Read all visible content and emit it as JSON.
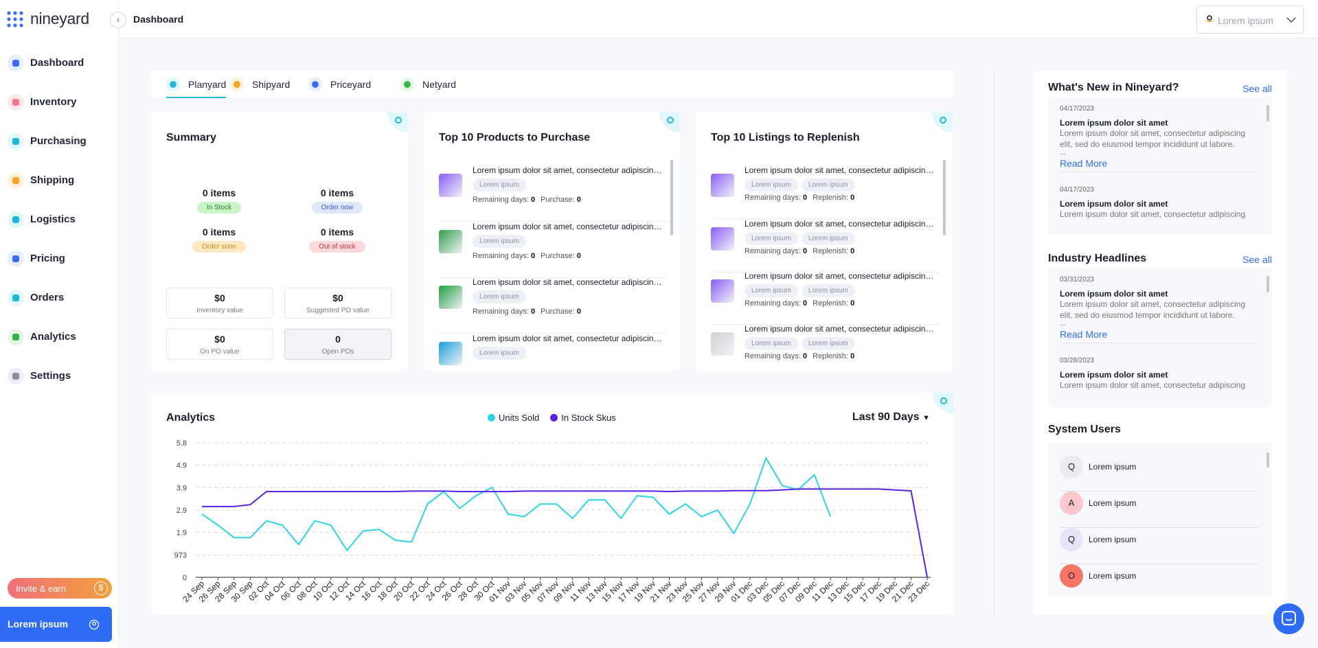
{
  "brand": "nineyard",
  "header": {
    "title": "Dashboard",
    "store": "Lorem ipsum"
  },
  "nav": [
    "Dashboard",
    "Inventory",
    "Purchasing",
    "Shipping",
    "Logistics",
    "Pricing",
    "Orders",
    "Analytics",
    "Settings"
  ],
  "invite": "Invite & earn",
  "account": "Lorem ipsum",
  "tabs": [
    "Planyard",
    "Shipyard",
    "Priceyard",
    "Netyard"
  ],
  "summary": {
    "title": "Summary",
    "statuses": [
      {
        "count": "0 items",
        "tag": "In Stock"
      },
      {
        "count": "0 items",
        "tag": "Order now"
      },
      {
        "count": "0 items",
        "tag": "Order soon"
      },
      {
        "count": "0 items",
        "tag": "Out of stock"
      }
    ],
    "values": [
      {
        "amount": "$0",
        "label": "Inventory value"
      },
      {
        "amount": "$0",
        "label": "Suggested PO value"
      },
      {
        "amount": "$0",
        "label": "On PO value"
      },
      {
        "amount": 0,
        "label": "Open POs"
      }
    ]
  },
  "products": {
    "title": "Top 10 Products to Purchase",
    "items": [
      {
        "name": "Lorem ipsum dolor sit amet, consectetur adipiscing elit",
        "tags": [
          "Lorem ipsum"
        ],
        "fields": [
          {
            "label": "Remaining days:",
            "value": 0
          },
          {
            "label": "Purchase:",
            "value": 0
          }
        ]
      },
      {
        "name": "Lorem ipsum dolor sit amet, consectetur adipiscing elit",
        "tags": [
          "Lorem ipsum"
        ],
        "fields": [
          {
            "label": "Remaining days:",
            "value": 0
          },
          {
            "label": "Purchase:",
            "value": 0
          }
        ]
      },
      {
        "name": "Lorem ipsum dolor sit amet, consectetur adipiscing elit",
        "tags": [
          "Lorem ipsum"
        ],
        "fields": [
          {
            "label": "Remaining days:",
            "value": 0
          },
          {
            "label": "Purchase:",
            "value": 0
          }
        ]
      },
      {
        "name": "Lorem ipsum dolor sit amet, consectetur adipiscing elit",
        "tags": [
          "Lorem ipsum"
        ],
        "fields": []
      }
    ]
  },
  "listings": {
    "title": "Top 10 Listings to Replenish",
    "items": [
      {
        "name": "Lorem ipsum dolor sit amet, consectetur adipiscing elit",
        "tags": [
          "Lorem ipsum",
          "Lorem ipsum"
        ],
        "fields": [
          {
            "label": "Remaining days:",
            "value": 0
          },
          {
            "label": "Replenish:",
            "value": 0
          }
        ]
      },
      {
        "name": "Lorem ipsum dolor sit amet, consectetur adipiscing elit",
        "tags": [
          "Lorem ipsum",
          "Lorem ipsum"
        ],
        "fields": [
          {
            "label": "Remaining days:",
            "value": 0
          },
          {
            "label": "Replenish:",
            "value": 0
          }
        ]
      },
      {
        "name": "Lorem ipsum dolor sit amet, consectetur adipiscing elit",
        "tags": [
          "Lorem ipsum",
          "Lorem ipsum"
        ],
        "fields": [
          {
            "label": "Remaining days:",
            "value": 0
          },
          {
            "label": "Replenish:",
            "value": 0
          }
        ]
      },
      {
        "name": "Lorem ipsum dolor sit amet, consectetur adipiscing elit",
        "tags": [
          "Lorem ipsum",
          "Lorem ipsum"
        ],
        "fields": [
          {
            "label": "Remaining days:",
            "value": 0
          },
          {
            "label": "Replenish:",
            "value": 0
          }
        ]
      }
    ]
  },
  "news": {
    "title": "What's New in Nineyard?",
    "see_all": "See all",
    "items": [
      {
        "date": "04/17/2023",
        "title": "Lorem ipsum dolor sit amet",
        "text": "Lorem ipsum dolor sit amet, consectetur adipiscing elit, sed do eiusmod tempor incididunt ut labore.",
        "ellipsis": "...",
        "more": "Read More"
      },
      {
        "date": "04/17/2023",
        "title": "Lorem ipsum dolor sit amet",
        "text": "Lorem ipsum dolor sit amet, consectetur adipiscing"
      }
    ]
  },
  "headlines": {
    "title": "Industry Headlines",
    "see_all": "See all",
    "items": [
      {
        "date": "03/31/2023",
        "title": "Lorem ipsum dolor sit amet",
        "text": "Lorem ipsum dolor sit amet, consectetur adipiscing elit, sed do eiusmod tempor incididunt ut labore.",
        "ellipsis": "...",
        "more": "Read More"
      },
      {
        "date": "03/28/2023",
        "title": "Lorem ipsum dolor sit amet",
        "text": "Lorem ipsum dolor sit amet, consectetur adipiscing"
      }
    ]
  },
  "users": {
    "title": "System Users",
    "items": [
      {
        "initial": "Q",
        "name": "Lorem ipsum"
      },
      {
        "initial": "A",
        "name": "Lorem ipsum"
      },
      {
        "initial": "Q",
        "name": "Lorem ipsum"
      },
      {
        "initial": "O",
        "name": "Lorem ipsum"
      }
    ]
  },
  "analytics": {
    "title": "Analytics",
    "range": "Last 90 Days"
  },
  "chart_data": {
    "type": "line",
    "x": [
      "24 Sep",
      "26 Sep",
      "28 Sep",
      "30 Sep",
      "02 Oct",
      "04 Oct",
      "06 Oct",
      "08 Oct",
      "10 Oct",
      "12 Oct",
      "14 Oct",
      "16 Oct",
      "18 Oct",
      "20 Oct",
      "22 Oct",
      "24 Oct",
      "26 Oct",
      "28 Oct",
      "30 Oct",
      "01 Nov",
      "03 Nov",
      "05 Nov",
      "07 Nov",
      "09 Nov",
      "11 Nov",
      "13 Nov",
      "15 Nov",
      "17 Nov",
      "19 Nov",
      "21 Nov",
      "23 Nov",
      "25 Nov",
      "27 Nov",
      "29 Nov",
      "01 Dec",
      "03 Dec",
      "05 Dec",
      "07 Dec",
      "09 Dec",
      "11 Dec",
      "13 Dec",
      "15 Dec",
      "17 Dec",
      "19 Dec",
      "21 Dec",
      "23 Dec"
    ],
    "series": [
      {
        "name": "Units Sold",
        "color": "#2dd4e9",
        "values": [
          2740,
          2260,
          1720,
          1720,
          2450,
          2260,
          1420,
          2450,
          2260,
          1170,
          2010,
          2080,
          1610,
          1530,
          3180,
          3720,
          2990,
          3540,
          3900,
          2740,
          2630,
          3180,
          3180,
          2560,
          3360,
          3360,
          2560,
          3540,
          3470,
          2740,
          3180,
          2630,
          2920,
          1900,
          3180,
          5180,
          3980,
          3800,
          4450,
          2630,
          null,
          null,
          null,
          null,
          null,
          null
        ]
      },
      {
        "name": "In Stock Skus",
        "color": "#5b21e0",
        "values": [
          3070,
          3070,
          3070,
          3150,
          3720,
          3720,
          3720,
          3720,
          3720,
          3720,
          3720,
          3720,
          3720,
          3740,
          3740,
          3740,
          3720,
          3720,
          3720,
          3720,
          3740,
          3740,
          3740,
          3740,
          3740,
          3740,
          3740,
          3740,
          3740,
          3720,
          3740,
          3740,
          3740,
          3760,
          3760,
          3760,
          3790,
          3830,
          3830,
          3830,
          3830,
          3830,
          3830,
          3790,
          3750,
          0
        ]
      }
    ],
    "ylim": [
      0,
      5838
    ],
    "yticks": [
      0,
      973,
      {
        "value": 1946,
        "label": "1.9"
      },
      {
        "value": 2919,
        "label": "2.9"
      },
      {
        "value": 3892,
        "label": "3.9"
      },
      {
        "value": 4865,
        "label": "4.9"
      },
      {
        "value": 5838,
        "label": "5.8"
      }
    ],
    "grid": true,
    "legend": "top"
  }
}
